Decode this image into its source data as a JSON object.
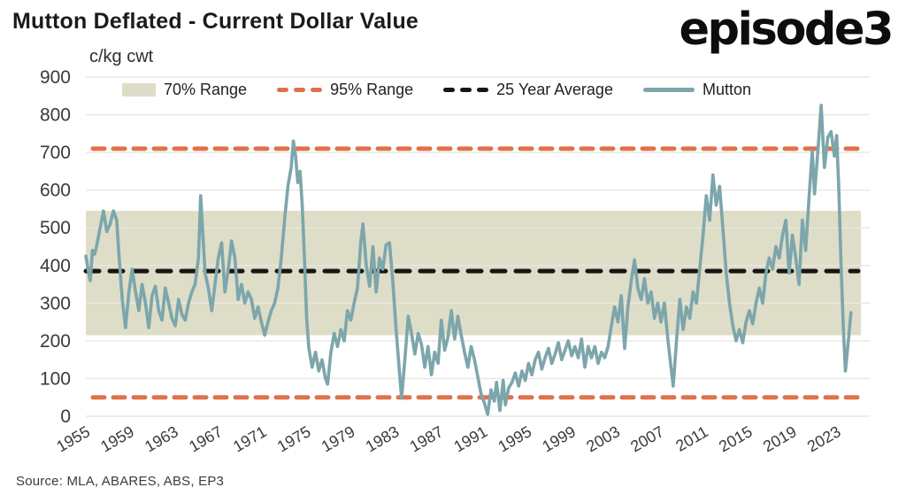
{
  "header": {
    "title": "Mutton Deflated - Current Dollar Value",
    "logo": "episode3"
  },
  "footer": {
    "source": "Source: MLA, ABARES, ABS, EP3"
  },
  "chart_data": {
    "type": "line",
    "title": "Mutton Deflated - Current Dollar Value",
    "xlabel": "",
    "ylabel": "c/kg cwt",
    "unit_label": "c/kg cwt",
    "grid": true,
    "legend_position": "top",
    "ylim": [
      0,
      900
    ],
    "x_range": [
      1955,
      2026
    ],
    "y_ticks": [
      0,
      100,
      200,
      300,
      400,
      500,
      600,
      700,
      800,
      900
    ],
    "x_ticks": [
      1955,
      1959,
      1963,
      1967,
      1971,
      1975,
      1979,
      1983,
      1987,
      1991,
      1995,
      1999,
      2003,
      2007,
      2011,
      2015,
      2019,
      2023
    ],
    "legend": [
      {
        "label": "70% Range",
        "type": "band",
        "color": "#DEDDC8"
      },
      {
        "label": "95% Range",
        "type": "dashed",
        "color": "#E0714B"
      },
      {
        "label": "25 Year Average",
        "type": "dashed",
        "color": "#161616"
      },
      {
        "label": "Mutton",
        "type": "line",
        "color": "#7CA6AB"
      }
    ],
    "colors": {
      "series": "#7CA6AB",
      "band": "#DEDDC8",
      "p95": "#E0714B",
      "average": "#161616",
      "grid": "#E9E7E1",
      "axis_text": "#3A3A3A"
    },
    "reference": {
      "band_70_range": {
        "low": 215,
        "high": 545
      },
      "p95_low": 50,
      "p95_high": 710,
      "avg_25yr": 385
    },
    "series": [
      {
        "name": "Mutton",
        "points": [
          [
            1955.0,
            425
          ],
          [
            1955.2,
            390
          ],
          [
            1955.4,
            360
          ],
          [
            1955.6,
            440
          ],
          [
            1955.8,
            430
          ],
          [
            1956.0,
            455
          ],
          [
            1956.3,
            500
          ],
          [
            1956.6,
            545
          ],
          [
            1956.9,
            490
          ],
          [
            1957.2,
            510
          ],
          [
            1957.5,
            545
          ],
          [
            1957.8,
            520
          ],
          [
            1958.0,
            430
          ],
          [
            1958.3,
            310
          ],
          [
            1958.6,
            235
          ],
          [
            1958.9,
            330
          ],
          [
            1959.2,
            390
          ],
          [
            1959.5,
            330
          ],
          [
            1959.8,
            280
          ],
          [
            1960.1,
            350
          ],
          [
            1960.4,
            300
          ],
          [
            1960.7,
            235
          ],
          [
            1961.0,
            320
          ],
          [
            1961.3,
            345
          ],
          [
            1961.6,
            280
          ],
          [
            1961.9,
            255
          ],
          [
            1962.2,
            340
          ],
          [
            1962.5,
            300
          ],
          [
            1962.8,
            260
          ],
          [
            1963.1,
            240
          ],
          [
            1963.4,
            310
          ],
          [
            1963.7,
            270
          ],
          [
            1964.0,
            255
          ],
          [
            1964.3,
            300
          ],
          [
            1964.6,
            330
          ],
          [
            1964.9,
            350
          ],
          [
            1965.2,
            420
          ],
          [
            1965.4,
            585
          ],
          [
            1965.6,
            480
          ],
          [
            1965.8,
            380
          ],
          [
            1966.1,
            340
          ],
          [
            1966.4,
            280
          ],
          [
            1966.7,
            350
          ],
          [
            1967.0,
            420
          ],
          [
            1967.3,
            460
          ],
          [
            1967.6,
            330
          ],
          [
            1967.9,
            390
          ],
          [
            1968.2,
            465
          ],
          [
            1968.5,
            420
          ],
          [
            1968.8,
            310
          ],
          [
            1969.1,
            350
          ],
          [
            1969.4,
            300
          ],
          [
            1969.7,
            330
          ],
          [
            1970.0,
            310
          ],
          [
            1970.3,
            260
          ],
          [
            1970.6,
            290
          ],
          [
            1970.9,
            250
          ],
          [
            1971.2,
            215
          ],
          [
            1971.5,
            250
          ],
          [
            1971.8,
            280
          ],
          [
            1972.1,
            300
          ],
          [
            1972.4,
            340
          ],
          [
            1972.7,
            420
          ],
          [
            1973.0,
            520
          ],
          [
            1973.3,
            610
          ],
          [
            1973.6,
            660
          ],
          [
            1973.8,
            730
          ],
          [
            1974.0,
            690
          ],
          [
            1974.2,
            620
          ],
          [
            1974.4,
            650
          ],
          [
            1974.6,
            560
          ],
          [
            1974.8,
            420
          ],
          [
            1975.0,
            260
          ],
          [
            1975.2,
            180
          ],
          [
            1975.5,
            130
          ],
          [
            1975.8,
            170
          ],
          [
            1976.1,
            120
          ],
          [
            1976.4,
            150
          ],
          [
            1976.7,
            100
          ],
          [
            1976.9,
            85
          ],
          [
            1977.2,
            170
          ],
          [
            1977.5,
            220
          ],
          [
            1977.8,
            185
          ],
          [
            1978.1,
            230
          ],
          [
            1978.4,
            200
          ],
          [
            1978.7,
            280
          ],
          [
            1979.0,
            255
          ],
          [
            1979.3,
            300
          ],
          [
            1979.6,
            340
          ],
          [
            1979.9,
            460
          ],
          [
            1980.1,
            510
          ],
          [
            1980.4,
            400
          ],
          [
            1980.7,
            345
          ],
          [
            1981.0,
            450
          ],
          [
            1981.3,
            330
          ],
          [
            1981.6,
            420
          ],
          [
            1981.9,
            390
          ],
          [
            1982.2,
            455
          ],
          [
            1982.5,
            460
          ],
          [
            1982.8,
            360
          ],
          [
            1983.1,
            230
          ],
          [
            1983.4,
            120
          ],
          [
            1983.6,
            48
          ],
          [
            1983.9,
            150
          ],
          [
            1984.2,
            265
          ],
          [
            1984.5,
            220
          ],
          [
            1984.8,
            165
          ],
          [
            1985.1,
            220
          ],
          [
            1985.4,
            190
          ],
          [
            1985.7,
            130
          ],
          [
            1986.0,
            185
          ],
          [
            1986.3,
            110
          ],
          [
            1986.6,
            170
          ],
          [
            1986.9,
            140
          ],
          [
            1987.2,
            255
          ],
          [
            1987.5,
            175
          ],
          [
            1987.8,
            210
          ],
          [
            1988.1,
            280
          ],
          [
            1988.4,
            205
          ],
          [
            1988.7,
            265
          ],
          [
            1989.0,
            215
          ],
          [
            1989.3,
            170
          ],
          [
            1989.6,
            130
          ],
          [
            1989.9,
            185
          ],
          [
            1990.2,
            150
          ],
          [
            1990.5,
            105
          ],
          [
            1990.8,
            60
          ],
          [
            1991.1,
            35
          ],
          [
            1991.4,
            5
          ],
          [
            1991.7,
            70
          ],
          [
            1992.0,
            40
          ],
          [
            1992.2,
            90
          ],
          [
            1992.5,
            15
          ],
          [
            1992.8,
            95
          ],
          [
            1993.0,
            30
          ],
          [
            1993.3,
            75
          ],
          [
            1993.6,
            90
          ],
          [
            1993.9,
            115
          ],
          [
            1994.2,
            80
          ],
          [
            1994.5,
            120
          ],
          [
            1994.8,
            95
          ],
          [
            1995.1,
            140
          ],
          [
            1995.4,
            110
          ],
          [
            1995.7,
            150
          ],
          [
            1996.0,
            170
          ],
          [
            1996.3,
            125
          ],
          [
            1996.6,
            155
          ],
          [
            1996.9,
            180
          ],
          [
            1997.2,
            140
          ],
          [
            1997.5,
            165
          ],
          [
            1997.8,
            195
          ],
          [
            1998.1,
            150
          ],
          [
            1998.4,
            175
          ],
          [
            1998.7,
            200
          ],
          [
            1999.0,
            160
          ],
          [
            1999.3,
            185
          ],
          [
            1999.6,
            155
          ],
          [
            1999.9,
            205
          ],
          [
            2000.2,
            130
          ],
          [
            2000.5,
            185
          ],
          [
            2000.8,
            155
          ],
          [
            2001.1,
            185
          ],
          [
            2001.4,
            140
          ],
          [
            2001.7,
            170
          ],
          [
            2002.0,
            155
          ],
          [
            2002.3,
            185
          ],
          [
            2002.6,
            240
          ],
          [
            2002.9,
            290
          ],
          [
            2003.2,
            250
          ],
          [
            2003.5,
            320
          ],
          [
            2003.8,
            180
          ],
          [
            2004.1,
            290
          ],
          [
            2004.4,
            360
          ],
          [
            2004.7,
            415
          ],
          [
            2005.0,
            340
          ],
          [
            2005.3,
            310
          ],
          [
            2005.6,
            365
          ],
          [
            2005.9,
            300
          ],
          [
            2006.2,
            330
          ],
          [
            2006.5,
            260
          ],
          [
            2006.8,
            300
          ],
          [
            2007.1,
            250
          ],
          [
            2007.4,
            300
          ],
          [
            2007.7,
            210
          ],
          [
            2008.0,
            130
          ],
          [
            2008.2,
            80
          ],
          [
            2008.5,
            200
          ],
          [
            2008.8,
            310
          ],
          [
            2009.1,
            230
          ],
          [
            2009.4,
            290
          ],
          [
            2009.7,
            260
          ],
          [
            2010.0,
            330
          ],
          [
            2010.3,
            300
          ],
          [
            2010.6,
            390
          ],
          [
            2010.9,
            480
          ],
          [
            2011.2,
            585
          ],
          [
            2011.5,
            520
          ],
          [
            2011.8,
            640
          ],
          [
            2012.1,
            560
          ],
          [
            2012.4,
            610
          ],
          [
            2012.7,
            500
          ],
          [
            2013.0,
            380
          ],
          [
            2013.3,
            300
          ],
          [
            2013.6,
            240
          ],
          [
            2013.9,
            200
          ],
          [
            2014.2,
            230
          ],
          [
            2014.5,
            195
          ],
          [
            2014.8,
            250
          ],
          [
            2015.1,
            280
          ],
          [
            2015.4,
            245
          ],
          [
            2015.7,
            300
          ],
          [
            2016.0,
            340
          ],
          [
            2016.3,
            300
          ],
          [
            2016.6,
            380
          ],
          [
            2016.9,
            420
          ],
          [
            2017.2,
            390
          ],
          [
            2017.5,
            450
          ],
          [
            2017.8,
            420
          ],
          [
            2018.1,
            480
          ],
          [
            2018.4,
            520
          ],
          [
            2018.7,
            380
          ],
          [
            2019.0,
            480
          ],
          [
            2019.3,
            420
          ],
          [
            2019.6,
            350
          ],
          [
            2019.9,
            520
          ],
          [
            2020.2,
            440
          ],
          [
            2020.5,
            580
          ],
          [
            2020.8,
            705
          ],
          [
            2021.0,
            590
          ],
          [
            2021.3,
            700
          ],
          [
            2021.6,
            825
          ],
          [
            2021.9,
            660
          ],
          [
            2022.2,
            740
          ],
          [
            2022.5,
            755
          ],
          [
            2022.8,
            690
          ],
          [
            2023.0,
            745
          ],
          [
            2023.2,
            600
          ],
          [
            2023.4,
            400
          ],
          [
            2023.6,
            240
          ],
          [
            2023.8,
            120
          ],
          [
            2024.0,
            180
          ],
          [
            2024.3,
            275
          ]
        ]
      }
    ]
  }
}
